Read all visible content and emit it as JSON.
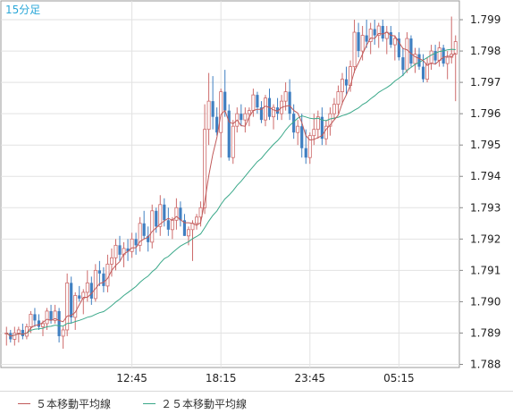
{
  "timeframe_label": "15分足",
  "chart_data": {
    "type": "candlestick",
    "y_ticks": [
      "1.799",
      "1.798",
      "1.797",
      "1.796",
      "1.795",
      "1.794",
      "1.793",
      "1.792",
      "1.791",
      "1.790",
      "1.789",
      "1.788"
    ],
    "ylim": [
      1.7879,
      1.7996
    ],
    "x_ticks": [
      {
        "label": "12:45",
        "index": 31
      },
      {
        "label": "18:15",
        "index": 53
      },
      {
        "label": "23:45",
        "index": 75
      },
      {
        "label": "05:15",
        "index": 97
      }
    ],
    "grid": true,
    "colors": {
      "up": "#cd6a6a",
      "down": "#3f7fc1",
      "ma5": "#c15a5a",
      "ma25": "#3aa889",
      "grid": "#e2e2e2"
    },
    "candles": [
      [
        1.789,
        1.7892,
        1.7886,
        1.789
      ],
      [
        1.789,
        1.7891,
        1.7887,
        1.7888
      ],
      [
        1.7888,
        1.7892,
        1.7886,
        1.789
      ],
      [
        1.789,
        1.7892,
        1.7887,
        1.7891
      ],
      [
        1.7891,
        1.7893,
        1.7888,
        1.7889
      ],
      [
        1.7889,
        1.7893,
        1.7888,
        1.7892
      ],
      [
        1.7892,
        1.7897,
        1.789,
        1.7896
      ],
      [
        1.7896,
        1.7898,
        1.7892,
        1.7894
      ],
      [
        1.7894,
        1.7896,
        1.7891,
        1.7892
      ],
      [
        1.7892,
        1.7894,
        1.7889,
        1.7893
      ],
      [
        1.7893,
        1.7898,
        1.7891,
        1.7897
      ],
      [
        1.7897,
        1.7899,
        1.7893,
        1.7894
      ],
      [
        1.7894,
        1.7899,
        1.7893,
        1.7897
      ],
      [
        1.7897,
        1.7898,
        1.7887,
        1.7889
      ],
      [
        1.7889,
        1.7892,
        1.7885,
        1.7891
      ],
      [
        1.7891,
        1.7909,
        1.7889,
        1.7906
      ],
      [
        1.7906,
        1.7908,
        1.7893,
        1.7895
      ],
      [
        1.7895,
        1.7903,
        1.7891,
        1.7902
      ],
      [
        1.7902,
        1.7905,
        1.79,
        1.7901
      ],
      [
        1.7901,
        1.7904,
        1.7896,
        1.7903
      ],
      [
        1.7903,
        1.791,
        1.79,
        1.7906
      ],
      [
        1.7906,
        1.7908,
        1.7899,
        1.7901
      ],
      [
        1.7901,
        1.7912,
        1.79,
        1.791
      ],
      [
        1.791,
        1.7913,
        1.7905,
        1.7909
      ],
      [
        1.7909,
        1.7911,
        1.7903,
        1.7905
      ],
      [
        1.7905,
        1.7915,
        1.7903,
        1.7912
      ],
      [
        1.7912,
        1.7917,
        1.7908,
        1.7914
      ],
      [
        1.7914,
        1.792,
        1.791,
        1.7918
      ],
      [
        1.7918,
        1.7921,
        1.7913,
        1.7915
      ],
      [
        1.7915,
        1.7919,
        1.7911,
        1.7917
      ],
      [
        1.7917,
        1.792,
        1.7913,
        1.7916
      ],
      [
        1.7916,
        1.7922,
        1.7914,
        1.792
      ],
      [
        1.792,
        1.7922,
        1.7915,
        1.7918
      ],
      [
        1.7918,
        1.7927,
        1.7916,
        1.7925
      ],
      [
        1.7925,
        1.7929,
        1.792,
        1.7921
      ],
      [
        1.7921,
        1.7924,
        1.7916,
        1.7919
      ],
      [
        1.7919,
        1.7931,
        1.7917,
        1.7929
      ],
      [
        1.7929,
        1.793,
        1.7922,
        1.7924
      ],
      [
        1.7924,
        1.7934,
        1.7921,
        1.7931
      ],
      [
        1.7931,
        1.7933,
        1.7924,
        1.7926
      ],
      [
        1.7926,
        1.793,
        1.7921,
        1.7923
      ],
      [
        1.7923,
        1.7927,
        1.792,
        1.7926
      ],
      [
        1.7926,
        1.7933,
        1.7923,
        1.793
      ],
      [
        1.793,
        1.7932,
        1.7924,
        1.7926
      ],
      [
        1.7926,
        1.7928,
        1.7921,
        1.7921
      ],
      [
        1.7921,
        1.7924,
        1.7918,
        1.7923
      ],
      [
        1.7923,
        1.7926,
        1.7913,
        1.7925
      ],
      [
        1.7925,
        1.7928,
        1.7923,
        1.7927
      ],
      [
        1.7927,
        1.7932,
        1.7924,
        1.793
      ],
      [
        1.793,
        1.7963,
        1.7928,
        1.7955
      ],
      [
        1.7955,
        1.7973,
        1.795,
        1.7964
      ],
      [
        1.7964,
        1.7972,
        1.7955,
        1.7959
      ],
      [
        1.7959,
        1.7962,
        1.7953,
        1.7954
      ],
      [
        1.7954,
        1.7968,
        1.7946,
        1.7967
      ],
      [
        1.7967,
        1.7974,
        1.7959,
        1.7961
      ],
      [
        1.7961,
        1.7963,
        1.7945,
        1.7946
      ],
      [
        1.7946,
        1.7958,
        1.7944,
        1.7956
      ],
      [
        1.7956,
        1.7962,
        1.7954,
        1.796
      ],
      [
        1.796,
        1.7963,
        1.7956,
        1.7958
      ],
      [
        1.7958,
        1.7962,
        1.7954,
        1.796
      ],
      [
        1.796,
        1.7962,
        1.7956,
        1.7961
      ],
      [
        1.7961,
        1.7968,
        1.7959,
        1.7966
      ],
      [
        1.7966,
        1.7967,
        1.796,
        1.7962
      ],
      [
        1.7962,
        1.7964,
        1.7957,
        1.7958
      ],
      [
        1.7958,
        1.7966,
        1.7956,
        1.7965
      ],
      [
        1.7965,
        1.7968,
        1.7958,
        1.7959
      ],
      [
        1.7959,
        1.7963,
        1.7955,
        1.7962
      ],
      [
        1.7962,
        1.7965,
        1.7958,
        1.796
      ],
      [
        1.796,
        1.7966,
        1.7958,
        1.7964
      ],
      [
        1.7964,
        1.797,
        1.7961,
        1.7967
      ],
      [
        1.7967,
        1.7971,
        1.7958,
        1.796
      ],
      [
        1.796,
        1.7963,
        1.7952,
        1.7954
      ],
      [
        1.7954,
        1.7958,
        1.795,
        1.7956
      ],
      [
        1.7956,
        1.796,
        1.7946,
        1.7949
      ],
      [
        1.7949,
        1.7955,
        1.7944,
        1.7946
      ],
      [
        1.7946,
        1.7954,
        1.7944,
        1.7953
      ],
      [
        1.7953,
        1.796,
        1.795,
        1.7955
      ],
      [
        1.7955,
        1.7961,
        1.7952,
        1.7959
      ],
      [
        1.7959,
        1.7962,
        1.795,
        1.7952
      ],
      [
        1.7952,
        1.7958,
        1.795,
        1.7956
      ],
      [
        1.7956,
        1.7962,
        1.7953,
        1.796
      ],
      [
        1.796,
        1.7965,
        1.7958,
        1.7963
      ],
      [
        1.7963,
        1.7969,
        1.796,
        1.7967
      ],
      [
        1.7967,
        1.7973,
        1.7963,
        1.7971
      ],
      [
        1.7971,
        1.7975,
        1.7966,
        1.7969
      ],
      [
        1.7969,
        1.7977,
        1.7967,
        1.7975
      ],
      [
        1.7975,
        1.799,
        1.7973,
        1.7986
      ],
      [
        1.7986,
        1.7989,
        1.7978,
        1.798
      ],
      [
        1.798,
        1.7988,
        1.7977,
        1.7985
      ],
      [
        1.7985,
        1.799,
        1.7981,
        1.7983
      ],
      [
        1.7983,
        1.7989,
        1.7979,
        1.7987
      ],
      [
        1.7987,
        1.799,
        1.7982,
        1.7985
      ],
      [
        1.7985,
        1.7989,
        1.7981,
        1.7988
      ],
      [
        1.7988,
        1.799,
        1.7983,
        1.7984
      ],
      [
        1.7984,
        1.7988,
        1.7979,
        1.7986
      ],
      [
        1.7986,
        1.7988,
        1.7981,
        1.7982
      ],
      [
        1.7982,
        1.7985,
        1.7977,
        1.7984
      ],
      [
        1.7984,
        1.7986,
        1.7977,
        1.7978
      ],
      [
        1.7978,
        1.7981,
        1.7972,
        1.7974
      ],
      [
        1.7974,
        1.7986,
        1.7973,
        1.7984
      ],
      [
        1.7984,
        1.7985,
        1.7975,
        1.7976
      ],
      [
        1.7976,
        1.7981,
        1.7973,
        1.7979
      ],
      [
        1.7979,
        1.7981,
        1.7974,
        1.7975
      ],
      [
        1.7975,
        1.7979,
        1.797,
        1.7971
      ],
      [
        1.7971,
        1.7978,
        1.797,
        1.7976
      ],
      [
        1.7976,
        1.7982,
        1.7974,
        1.798
      ],
      [
        1.798,
        1.7982,
        1.7976,
        1.7977
      ],
      [
        1.7977,
        1.7983,
        1.7975,
        1.7981
      ],
      [
        1.7981,
        1.7982,
        1.7975,
        1.7976
      ],
      [
        1.7976,
        1.798,
        1.7971,
        1.7978
      ],
      [
        1.7978,
        1.7991,
        1.7976,
        1.7979
      ],
      [
        1.7979,
        1.7985,
        1.7964,
        1.7983
      ]
    ]
  },
  "legend": {
    "ma5_label": "５本移動平均線",
    "ma25_label": "２５本移動平均線"
  }
}
